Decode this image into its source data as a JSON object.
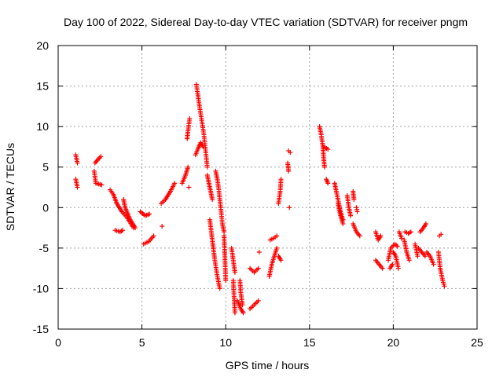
{
  "chart_data": {
    "type": "scatter",
    "title": "Day 100 of 2022, Sidereal Day-to-day VTEC variation (SDTVAR) for receiver pngm",
    "xlabel": "GPS time / hours",
    "ylabel": "SDTVAR / TECUs",
    "xlim": [
      0,
      25
    ],
    "ylim": [
      -15,
      20
    ],
    "xticks": [
      0,
      5,
      10,
      15,
      20,
      25
    ],
    "yticks": [
      -15,
      -10,
      -5,
      0,
      5,
      10,
      15,
      20
    ],
    "xtick_labels": [
      "0",
      "5",
      "10",
      "15",
      "20",
      "25"
    ],
    "ytick_labels": [
      "-15",
      "-10",
      "-5",
      "0",
      "5",
      "10",
      "15",
      "20"
    ],
    "grid": true,
    "marker": "+",
    "marker_color": "#ff0000",
    "series": [
      {
        "name": "SDTVAR",
        "segments": [
          [
            [
              1.05,
              6.5
            ],
            [
              1.15,
              5.5
            ]
          ],
          [
            [
              1.05,
              3.5
            ],
            [
              1.15,
              2.5
            ]
          ],
          [
            [
              2.15,
              4.5
            ],
            [
              2.25,
              3.0
            ],
            [
              2.6,
              2.8
            ]
          ],
          [
            [
              2.2,
              5.5
            ],
            [
              2.4,
              6.0
            ],
            [
              2.55,
              6.3
            ]
          ],
          [
            [
              3.1,
              2.2
            ],
            [
              3.3,
              1.6
            ],
            [
              3.5,
              0.5
            ],
            [
              3.8,
              -0.5
            ],
            [
              4.1,
              -1.2
            ],
            [
              4.5,
              -2.5
            ]
          ],
          [
            [
              3.4,
              -2.8
            ],
            [
              3.7,
              -3.0
            ],
            [
              3.85,
              -2.8
            ]
          ],
          [
            [
              3.9,
              1.0
            ],
            [
              4.0,
              0.0
            ],
            [
              4.3,
              -1.5
            ],
            [
              4.6,
              -2.5
            ]
          ],
          [
            [
              4.9,
              -0.5
            ],
            [
              5.2,
              -1.0
            ],
            [
              5.45,
              -0.8
            ]
          ],
          [
            [
              5.1,
              -4.5
            ],
            [
              5.4,
              -4.2
            ],
            [
              5.7,
              -3.5
            ]
          ],
          [
            [
              6.15,
              0.5
            ],
            [
              6.4,
              1.0
            ],
            [
              6.7,
              2.0
            ],
            [
              6.95,
              3.0
            ]
          ],
          [
            [
              6.2,
              -2.3
            ]
          ],
          [
            [
              7.4,
              3.0
            ],
            [
              7.6,
              4.0
            ],
            [
              7.75,
              5.0
            ]
          ],
          [
            [
              7.8,
              2.5
            ]
          ],
          [
            [
              7.7,
              8.5
            ],
            [
              7.75,
              9.5
            ],
            [
              7.85,
              11.0
            ]
          ],
          [
            [
              8.25,
              15.2
            ],
            [
              8.4,
              13.0
            ],
            [
              8.55,
              11.0
            ],
            [
              8.7,
              9.0
            ],
            [
              8.8,
              7.0
            ],
            [
              8.9,
              5.0
            ]
          ],
          [
            [
              8.2,
              6.5
            ],
            [
              8.35,
              7.3
            ],
            [
              8.5,
              8.0
            ],
            [
              8.65,
              7.5
            ]
          ],
          [
            [
              8.9,
              4.0
            ],
            [
              9.0,
              3.0
            ],
            [
              9.1,
              2.0
            ],
            [
              9.2,
              1.0
            ]
          ],
          [
            [
              9.4,
              4.5
            ],
            [
              9.5,
              3.5
            ],
            [
              9.6,
              2.0
            ],
            [
              9.7,
              0.0
            ],
            [
              9.8,
              -2.0
            ],
            [
              9.9,
              -3.0
            ]
          ],
          [
            [
              9.05,
              -1.5
            ],
            [
              9.2,
              -4.0
            ],
            [
              9.35,
              -6.5
            ],
            [
              9.5,
              -8.5
            ],
            [
              9.65,
              -10.0
            ]
          ],
          [
            [
              9.9,
              -3.5
            ],
            [
              9.95,
              -6.0
            ],
            [
              10.0,
              -9.0
            ]
          ],
          [
            [
              10.35,
              -5.0
            ],
            [
              10.45,
              -6.5
            ],
            [
              10.55,
              -8.0
            ]
          ],
          [
            [
              10.45,
              -9.0
            ],
            [
              10.5,
              -11.0
            ],
            [
              10.55,
              -13.0
            ]
          ],
          [
            [
              10.85,
              -9.0
            ],
            [
              10.9,
              -10.5
            ],
            [
              11.0,
              -12.0
            ]
          ],
          [
            [
              10.7,
              -11.5
            ],
            [
              10.9,
              -12.5
            ],
            [
              11.05,
              -13.0
            ]
          ],
          [
            [
              11.45,
              -12.5
            ],
            [
              11.7,
              -12.0
            ],
            [
              11.95,
              -11.5
            ]
          ],
          [
            [
              11.45,
              -7.5
            ],
            [
              11.7,
              -8.0
            ],
            [
              11.95,
              -7.5
            ]
          ],
          [
            [
              12.0,
              -5.5
            ]
          ],
          [
            [
              12.6,
              -8.5
            ],
            [
              12.75,
              -7.0
            ],
            [
              12.9,
              -6.0
            ],
            [
              13.05,
              -5.0
            ]
          ],
          [
            [
              12.65,
              -4.0
            ],
            [
              12.85,
              -3.8
            ],
            [
              13.05,
              -3.5
            ]
          ],
          [
            [
              13.15,
              0.5
            ],
            [
              13.25,
              2.0
            ],
            [
              13.3,
              3.5
            ]
          ],
          [
            [
              13.15,
              -6.0
            ],
            [
              13.3,
              -6.5
            ]
          ],
          [
            [
              13.75,
              7.0
            ],
            [
              13.85,
              6.8
            ]
          ],
          [
            [
              13.7,
              5.5
            ],
            [
              13.75,
              4.5
            ]
          ],
          [
            [
              13.8,
              0.0
            ]
          ],
          [
            [
              15.6,
              10.0
            ],
            [
              15.7,
              9.0
            ],
            [
              15.8,
              7.5
            ],
            [
              15.85,
              6.0
            ],
            [
              15.9,
              5.0
            ]
          ],
          [
            [
              15.85,
              7.5
            ],
            [
              16.1,
              7.2
            ]
          ],
          [
            [
              16.0,
              3.5
            ],
            [
              16.1,
              3.0
            ]
          ],
          [
            [
              16.5,
              3.0
            ],
            [
              16.6,
              2.0
            ],
            [
              16.75,
              0.5
            ],
            [
              16.85,
              -0.5
            ],
            [
              17.0,
              -1.5
            ]
          ],
          [
            [
              16.7,
              0.5
            ],
            [
              16.85,
              -1.0
            ],
            [
              17.0,
              -2.0
            ]
          ],
          [
            [
              17.25,
              1.5
            ],
            [
              17.35,
              0.0
            ],
            [
              17.45,
              -1.0
            ]
          ],
          [
            [
              17.6,
              -2.0
            ],
            [
              17.8,
              -3.0
            ],
            [
              18.0,
              -3.5
            ]
          ],
          [
            [
              17.6,
              2.0
            ],
            [
              17.65,
              1.0
            ]
          ],
          [
            [
              17.8,
              0.0
            ],
            [
              17.85,
              -0.5
            ]
          ],
          [
            [
              18.95,
              -3.0
            ],
            [
              19.1,
              -4.0
            ],
            [
              19.25,
              -3.5
            ]
          ],
          [
            [
              18.95,
              -6.5
            ],
            [
              19.15,
              -7.0
            ],
            [
              19.35,
              -7.5
            ]
          ],
          [
            [
              19.7,
              -6.5
            ],
            [
              19.85,
              -5.0
            ],
            [
              20.1,
              -4.5
            ],
            [
              20.25,
              -4.8
            ]
          ],
          [
            [
              19.8,
              -7.5
            ],
            [
              19.95,
              -7.0
            ]
          ],
          [
            [
              20.0,
              -5.5
            ],
            [
              20.15,
              -6.0
            ],
            [
              20.3,
              -7.5
            ]
          ],
          [
            [
              20.35,
              -3.0
            ],
            [
              20.5,
              -3.8
            ]
          ],
          [
            [
              20.65,
              -4.0
            ],
            [
              20.8,
              -5.5
            ],
            [
              20.95,
              -6.5
            ]
          ],
          [
            [
              20.7,
              -3.0
            ],
            [
              20.9,
              -3.2
            ],
            [
              21.05,
              -3.0
            ]
          ],
          [
            [
              21.3,
              -4.5
            ],
            [
              21.45,
              -6.0
            ]
          ],
          [
            [
              21.5,
              -5.0
            ],
            [
              21.7,
              -5.5
            ],
            [
              21.9,
              -6.0
            ]
          ],
          [
            [
              21.6,
              -3.0
            ],
            [
              21.8,
              -2.5
            ],
            [
              21.95,
              -2.0
            ]
          ],
          [
            [
              22.0,
              -5.5
            ],
            [
              22.2,
              -6.0
            ],
            [
              22.4,
              -7.0
            ]
          ],
          [
            [
              22.75,
              -3.5
            ],
            [
              22.85,
              -3.3
            ]
          ],
          [
            [
              22.7,
              -5.5
            ],
            [
              22.8,
              -7.5
            ],
            [
              22.95,
              -9.0
            ],
            [
              23.05,
              -9.7
            ]
          ]
        ]
      }
    ]
  }
}
